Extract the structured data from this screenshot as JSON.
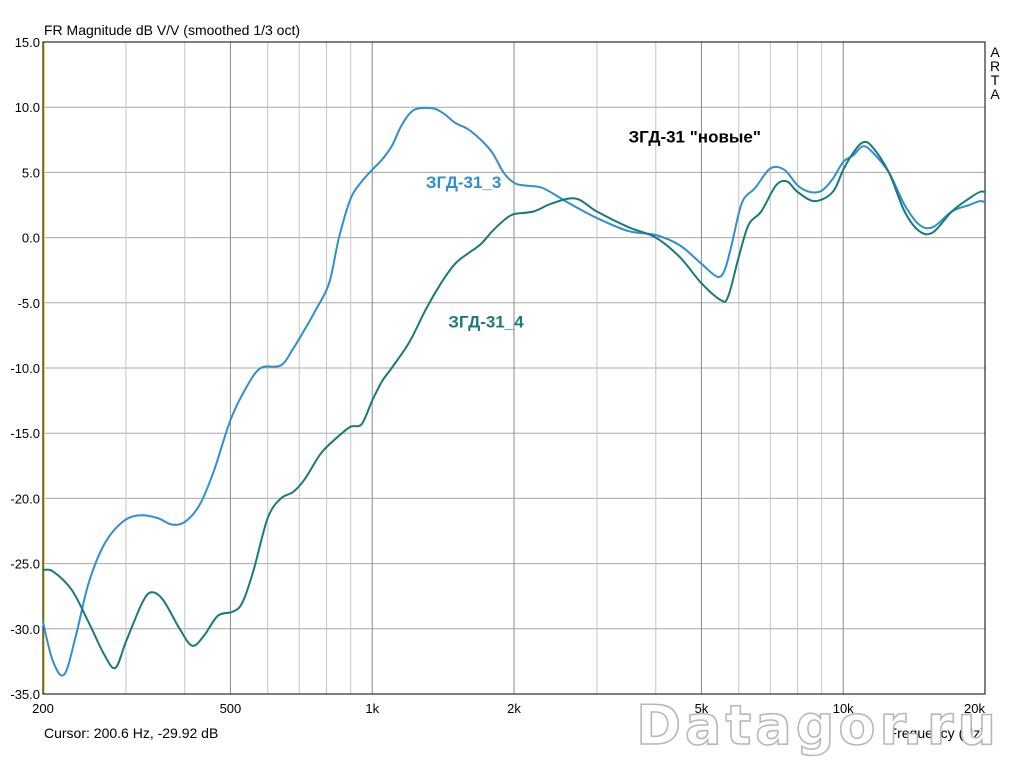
{
  "chart_data": {
    "type": "line",
    "title": "FR Magnitude dB V/V (smoothed 1/3 oct)",
    "brand": "ARTA",
    "xlabel": "Frequency (Hz)",
    "cursor_text": "Cursor: 200.6 Hz, -29.92 dB",
    "xscale": "log",
    "xlim": [
      200,
      20000
    ],
    "ylim": [
      -35,
      15
    ],
    "grid": true,
    "x_ticks": [
      {
        "value": 200,
        "label": "200"
      },
      {
        "value": 500,
        "label": "500"
      },
      {
        "value": 1000,
        "label": "1k"
      },
      {
        "value": 2000,
        "label": "2k"
      },
      {
        "value": 5000,
        "label": "5k"
      },
      {
        "value": 10000,
        "label": "10k"
      },
      {
        "value": 20000,
        "label": "20k"
      }
    ],
    "y_ticks": [
      {
        "value": 15,
        "label": "15.0"
      },
      {
        "value": 10,
        "label": "10.0"
      },
      {
        "value": 5,
        "label": "5.0"
      },
      {
        "value": 0,
        "label": "0.0"
      },
      {
        "value": -5,
        "label": "-5.0"
      },
      {
        "value": -10,
        "label": "-10.0"
      },
      {
        "value": -15,
        "label": "-15.0"
      },
      {
        "value": -20,
        "label": "-20.0"
      },
      {
        "value": -25,
        "label": "-25.0"
      },
      {
        "value": -30,
        "label": "-30.0"
      },
      {
        "value": -35,
        "label": "-35.0"
      }
    ],
    "series": [
      {
        "name": "ЗГД-31_3",
        "color": "#2f8fcf",
        "points": [
          [
            200,
            -29.5
          ],
          [
            210,
            -32.5
          ],
          [
            222,
            -33.5
          ],
          [
            235,
            -30.5
          ],
          [
            250,
            -26.5
          ],
          [
            270,
            -23.5
          ],
          [
            295,
            -21.8
          ],
          [
            320,
            -21.3
          ],
          [
            350,
            -21.5
          ],
          [
            375,
            -22.0
          ],
          [
            400,
            -21.8
          ],
          [
            430,
            -20.5
          ],
          [
            460,
            -18.0
          ],
          [
            500,
            -14.0
          ],
          [
            540,
            -11.5
          ],
          [
            580,
            -10.0
          ],
          [
            640,
            -9.8
          ],
          [
            680,
            -8.5
          ],
          [
            720,
            -7.0
          ],
          [
            760,
            -5.5
          ],
          [
            810,
            -3.5
          ],
          [
            850,
            0.0
          ],
          [
            900,
            3.0
          ],
          [
            950,
            4.3
          ],
          [
            1000,
            5.2
          ],
          [
            1050,
            6.0
          ],
          [
            1100,
            7.0
          ],
          [
            1150,
            8.5
          ],
          [
            1200,
            9.5
          ],
          [
            1250,
            9.9
          ],
          [
            1350,
            9.9
          ],
          [
            1420,
            9.5
          ],
          [
            1500,
            8.8
          ],
          [
            1600,
            8.3
          ],
          [
            1700,
            7.5
          ],
          [
            1800,
            6.5
          ],
          [
            1900,
            5.0
          ],
          [
            2000,
            4.2
          ],
          [
            2100,
            4.0
          ],
          [
            2300,
            3.8
          ],
          [
            2600,
            2.7
          ],
          [
            3000,
            1.5
          ],
          [
            3500,
            0.5
          ],
          [
            4000,
            0.2
          ],
          [
            4500,
            -0.6
          ],
          [
            5000,
            -2.0
          ],
          [
            5400,
            -3.0
          ],
          [
            5600,
            -2.5
          ],
          [
            5800,
            -0.5
          ],
          [
            6100,
            2.7
          ],
          [
            6500,
            3.8
          ],
          [
            7000,
            5.3
          ],
          [
            7500,
            5.2
          ],
          [
            8000,
            4.0
          ],
          [
            8500,
            3.5
          ],
          [
            9000,
            3.6
          ],
          [
            9500,
            4.5
          ],
          [
            10000,
            5.8
          ],
          [
            10500,
            6.3
          ],
          [
            11000,
            7.0
          ],
          [
            11500,
            6.6
          ],
          [
            12500,
            5.0
          ],
          [
            13500,
            2.5
          ],
          [
            14500,
            1.0
          ],
          [
            15500,
            0.8
          ],
          [
            17000,
            2.0
          ],
          [
            18500,
            2.5
          ],
          [
            19500,
            2.8
          ],
          [
            20000,
            2.7
          ]
        ]
      },
      {
        "name": "ЗГД-31_4",
        "color": "#1a7a7a",
        "points": [
          [
            200,
            -25.5
          ],
          [
            210,
            -25.6
          ],
          [
            230,
            -27.0
          ],
          [
            250,
            -29.5
          ],
          [
            270,
            -32.0
          ],
          [
            285,
            -33.0
          ],
          [
            300,
            -31.0
          ],
          [
            325,
            -28.0
          ],
          [
            340,
            -27.2
          ],
          [
            360,
            -27.8
          ],
          [
            390,
            -30.0
          ],
          [
            415,
            -31.3
          ],
          [
            440,
            -30.5
          ],
          [
            470,
            -29.0
          ],
          [
            505,
            -28.7
          ],
          [
            530,
            -28.0
          ],
          [
            560,
            -25.5
          ],
          [
            600,
            -21.5
          ],
          [
            640,
            -20.0
          ],
          [
            680,
            -19.5
          ],
          [
            720,
            -18.5
          ],
          [
            780,
            -16.5
          ],
          [
            850,
            -15.2
          ],
          [
            900,
            -14.5
          ],
          [
            950,
            -14.3
          ],
          [
            1000,
            -12.5
          ],
          [
            1050,
            -11.0
          ],
          [
            1100,
            -10.0
          ],
          [
            1200,
            -8.0
          ],
          [
            1300,
            -5.5
          ],
          [
            1400,
            -3.5
          ],
          [
            1500,
            -2.0
          ],
          [
            1600,
            -1.2
          ],
          [
            1700,
            -0.5
          ],
          [
            1800,
            0.5
          ],
          [
            1900,
            1.3
          ],
          [
            2000,
            1.8
          ],
          [
            2200,
            2.0
          ],
          [
            2400,
            2.6
          ],
          [
            2700,
            3.0
          ],
          [
            3000,
            2.0
          ],
          [
            3500,
            0.8
          ],
          [
            4000,
            0.0
          ],
          [
            4500,
            -1.5
          ],
          [
            5000,
            -3.5
          ],
          [
            5500,
            -4.8
          ],
          [
            5700,
            -4.5
          ],
          [
            6000,
            -1.5
          ],
          [
            6300,
            1.0
          ],
          [
            6700,
            2.0
          ],
          [
            7200,
            4.0
          ],
          [
            7600,
            4.3
          ],
          [
            8000,
            3.5
          ],
          [
            8700,
            2.8
          ],
          [
            9500,
            3.5
          ],
          [
            10000,
            5.2
          ],
          [
            10500,
            6.5
          ],
          [
            11000,
            7.3
          ],
          [
            11500,
            7.0
          ],
          [
            12500,
            5.0
          ],
          [
            13500,
            2.0
          ],
          [
            14500,
            0.5
          ],
          [
            15500,
            0.4
          ],
          [
            17000,
            2.0
          ],
          [
            18500,
            3.0
          ],
          [
            19500,
            3.5
          ],
          [
            20000,
            3.5
          ]
        ]
      }
    ],
    "annotations": [
      {
        "text": "ЗГД-31 \"новые\"",
        "x": 3500,
        "y": 7.3,
        "color": "#000000"
      },
      {
        "text": "ЗГД-31_3",
        "x": 1300,
        "y": 3.8,
        "color": "#2f8fcf"
      },
      {
        "text": "ЗГД-31_4",
        "x": 1450,
        "y": -6.9,
        "color": "#1a7a7a"
      }
    ]
  },
  "watermark": "Datagor.ru"
}
